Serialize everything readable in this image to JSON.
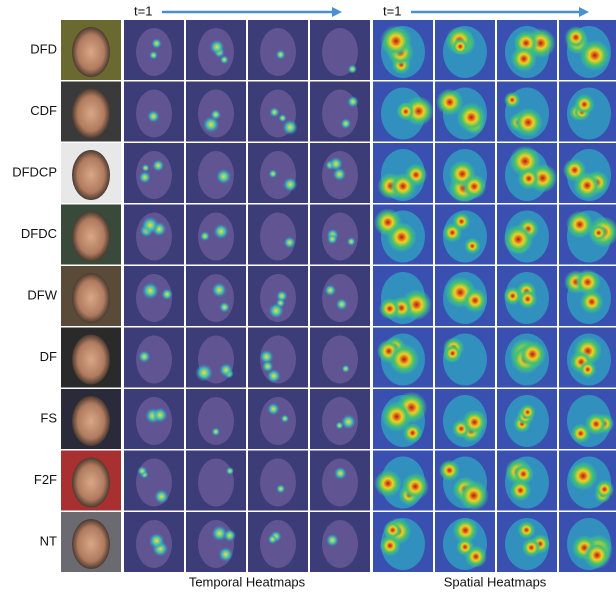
{
  "row_labels": [
    "DFD",
    "CDF",
    "DFDCP",
    "DFDC",
    "DFW",
    "DF",
    "FS",
    "F2F",
    "NT"
  ],
  "temporal": {
    "start_label": "t=1",
    "caption": "Temporal Heatmaps"
  },
  "spatial": {
    "start_label": "t=1",
    "caption": "Spatial Heatmaps"
  }
}
